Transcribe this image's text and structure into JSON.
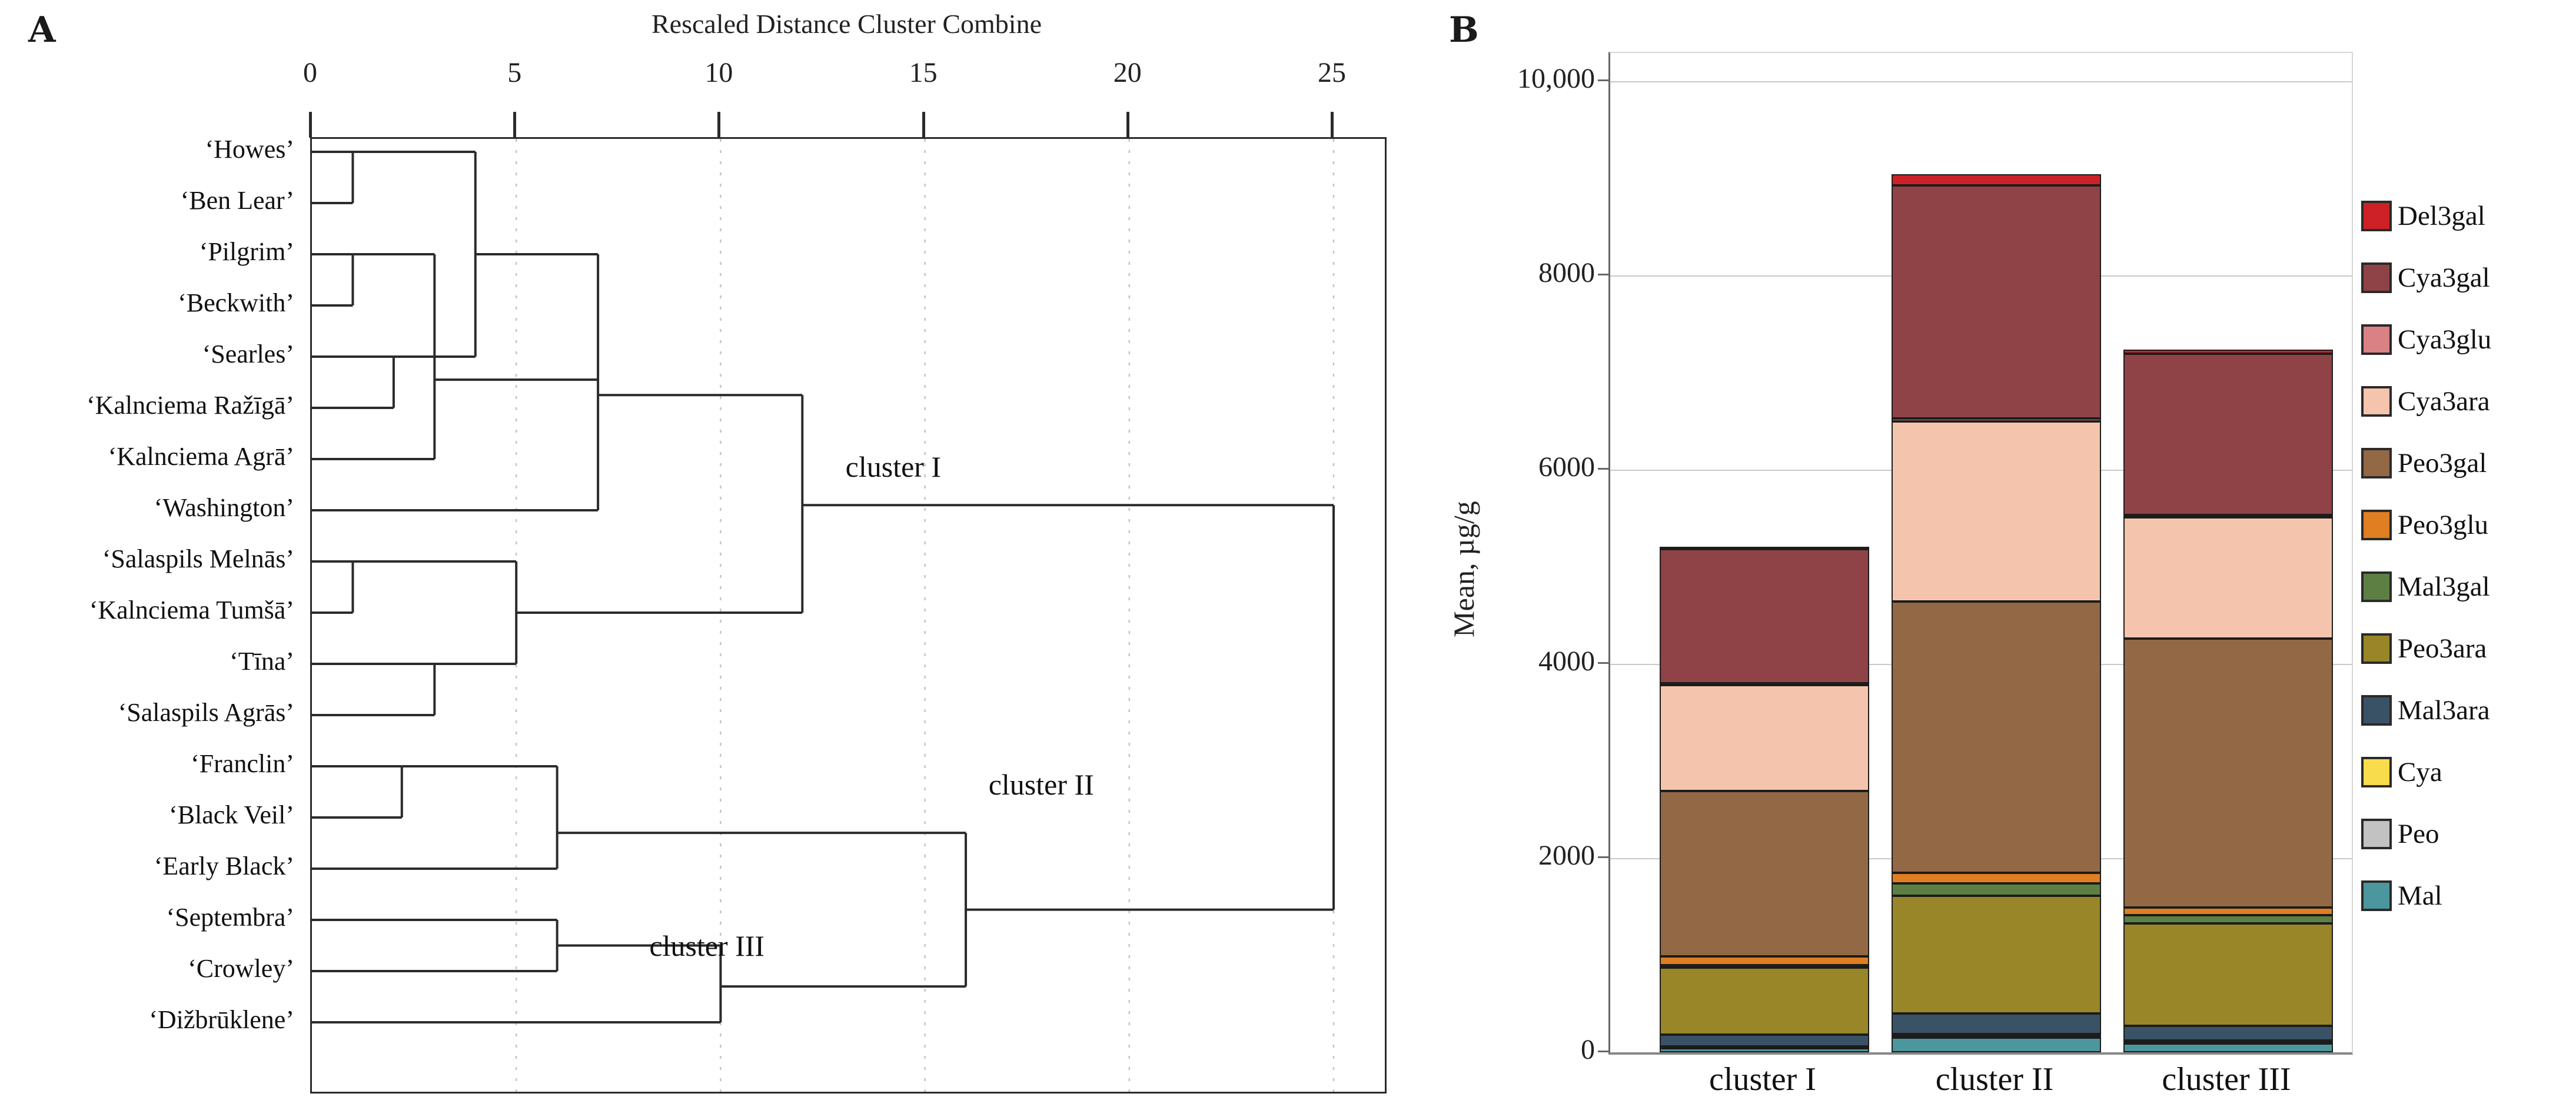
{
  "panel_a": {
    "label": "A",
    "title": "Rescaled Distance Cluster Combine"
  },
  "panel_b": {
    "label": "B",
    "ylabel": "Mean, µg/g"
  },
  "chart_data": [
    {
      "type": "dendrogram",
      "panel": "A",
      "title": "Rescaled Distance Cluster Combine",
      "orientation": "horizontal, leaves on left",
      "axis_ticks": [
        0,
        5,
        10,
        15,
        20,
        25
      ],
      "xlim": [
        0,
        26.2
      ],
      "grid": "dashed vertical gridlines at ticks",
      "leaves": [
        "‘Howes’",
        "‘Ben Lear’",
        "‘Pilgrim’",
        "‘Beckwith’",
        "‘Searles’",
        "‘Kalnciema Ražīgā’",
        "‘Kalnciema Agrā’",
        "‘Washington’",
        "‘Salaspils Melnās’",
        "‘Kalnciema Tumšā’",
        "‘Tīna’",
        "‘Salaspils Agrās’",
        "‘Franclin’",
        "‘Black Veil’",
        "‘Early Black’",
        "‘Septembra’",
        "‘Crowley’",
        "‘Dižbrūklene’"
      ],
      "merges": [
        {
          "merge": [
            "Howes",
            "Ben Lear"
          ],
          "distance": 1
        },
        {
          "merge": [
            "Pilgrim",
            "Beckwith"
          ],
          "distance": 1
        },
        {
          "merge": [
            "Searles",
            "Kalnciema Ražīgā"
          ],
          "distance": 2
        },
        {
          "merge": [
            "Pilgrim+Beckwith",
            "Kalnciema Agrā"
          ],
          "distance": 3
        },
        {
          "merge": [
            "Howes+Ben Lear",
            "Searles+Kalnciema Ražīgā"
          ],
          "distance": 4
        },
        {
          "merge": [
            "upper seven",
            "Washington"
          ],
          "distance": 7
        },
        {
          "merge": [
            "Salaspils Melnās",
            "Kalnciema Tumšā"
          ],
          "distance": 1
        },
        {
          "merge": [
            "Tīna",
            "Salaspils Agrās"
          ],
          "distance": 3
        },
        {
          "merge": [
            "Salaspils Melnās+Kalnciema Tumšā",
            "Tīna+Salaspils Agrās"
          ],
          "distance": 5
        },
        {
          "merge": [
            "upper eight",
            "Salaspils quad"
          ],
          "distance": 12,
          "forms": "cluster I"
        },
        {
          "merge": [
            "Franclin",
            "Black Veil"
          ],
          "distance": 2.2
        },
        {
          "merge": [
            "Franclin+Black Veil",
            "Early Black"
          ],
          "distance": 6,
          "forms": "cluster II"
        },
        {
          "merge": [
            "Septembra",
            "Crowley"
          ],
          "distance": 6
        },
        {
          "merge": [
            "Septembra+Crowley",
            "Dižbrūklene"
          ],
          "distance": 10,
          "forms": "cluster III"
        },
        {
          "merge": [
            "cluster II",
            "cluster III"
          ],
          "distance": 16
        },
        {
          "merge": [
            "cluster I",
            "cluster II + cluster III"
          ],
          "distance": 25
        }
      ],
      "cluster_labels": [
        {
          "text": "cluster I",
          "d": 13.1,
          "row": 7.2
        },
        {
          "text": "cluster II",
          "d": 16.6,
          "row": 13.4
        },
        {
          "text": "cluster III",
          "d": 8.3,
          "row": 16.55
        }
      ],
      "render": {
        "h_segments": [
          [
            1,
            0,
            1
          ],
          [
            2,
            0,
            1
          ],
          [
            1,
            1,
            4
          ],
          [
            3,
            0,
            1
          ],
          [
            4,
            0,
            1
          ],
          [
            3,
            1,
            3
          ],
          [
            5,
            0,
            2
          ],
          [
            6,
            0,
            2
          ],
          [
            5,
            2,
            4
          ],
          [
            7,
            0,
            3
          ],
          [
            5.45,
            3,
            7
          ],
          [
            3,
            4,
            7
          ],
          [
            8,
            0,
            7
          ],
          [
            5.75,
            7,
            12
          ],
          [
            9,
            0,
            1
          ],
          [
            10,
            0,
            1
          ],
          [
            9,
            1,
            5
          ],
          [
            11,
            0,
            3
          ],
          [
            12,
            0,
            3
          ],
          [
            11,
            3,
            5
          ],
          [
            10,
            5,
            12
          ],
          [
            7.9,
            12,
            25
          ],
          [
            13,
            0,
            2.2
          ],
          [
            14,
            0,
            2.2
          ],
          [
            13,
            2.2,
            6
          ],
          [
            15,
            0,
            6
          ],
          [
            14.3,
            6,
            16
          ],
          [
            16,
            0,
            6
          ],
          [
            17,
            0,
            6
          ],
          [
            16.5,
            6,
            10
          ],
          [
            18,
            0,
            10
          ],
          [
            17.3,
            10,
            16
          ],
          [
            15.8,
            16,
            25
          ]
        ],
        "v_segments": [
          [
            1,
            1,
            2
          ],
          [
            1,
            3,
            4
          ],
          [
            2,
            5,
            6
          ],
          [
            3,
            3,
            7
          ],
          [
            4,
            1,
            5
          ],
          [
            7,
            3,
            8
          ],
          [
            1,
            9,
            10
          ],
          [
            3,
            11,
            12
          ],
          [
            5,
            9,
            11
          ],
          [
            12,
            5.75,
            10
          ],
          [
            2.2,
            13,
            14
          ],
          [
            6,
            13,
            15
          ],
          [
            6,
            16,
            17
          ],
          [
            10,
            16.5,
            18
          ],
          [
            16,
            14.3,
            17.3
          ],
          [
            25,
            7.9,
            15.8
          ]
        ]
      }
    },
    {
      "type": "bar",
      "panel": "B",
      "stacked": true,
      "title": "",
      "xlabel": "",
      "ylabel": "Mean, µg/g",
      "ylim": [
        0,
        10000
      ],
      "yticks": [
        0,
        2000,
        4000,
        6000,
        8000,
        10000
      ],
      "ytick_labels": [
        "0",
        "2000",
        "4000",
        "6000",
        "8000",
        "10,000"
      ],
      "grid": true,
      "legend_position": "right",
      "legend_top_to_bottom": [
        "Del3gal",
        "Cya3gal",
        "Cya3glu",
        "Cya3ara",
        "Peo3gal",
        "Peo3glu",
        "Mal3gal",
        "Peo3ara",
        "Mal3ara",
        "Cya",
        "Peo",
        "Mal"
      ],
      "categories": [
        "cluster I",
        "cluster II",
        "cluster III"
      ],
      "series_bottom_to_top": [
        {
          "name": "Mal",
          "color": "#4C979D",
          "values": [
            40,
            150,
            90
          ]
        },
        {
          "name": "Peo",
          "color": "#C2C2C2",
          "values": [
            10,
            20,
            15
          ]
        },
        {
          "name": "Cya",
          "color": "#F9DC4B",
          "values": [
            10,
            20,
            15
          ]
        },
        {
          "name": "Mal3ara",
          "color": "#3A5266",
          "values": [
            120,
            210,
            150
          ]
        },
        {
          "name": "Peo3ara",
          "color": "#988629",
          "values": [
            690,
            1210,
            1060
          ]
        },
        {
          "name": "Mal3gal",
          "color": "#5D7F44",
          "values": [
            30,
            130,
            80
          ]
        },
        {
          "name": "Peo3glu",
          "color": "#E07E22",
          "values": [
            90,
            110,
            80
          ]
        },
        {
          "name": "Peo3gal",
          "color": "#936845",
          "values": [
            1700,
            2790,
            2770
          ]
        },
        {
          "name": "Cya3ara",
          "color": "#F4C5AC",
          "values": [
            1090,
            1860,
            1250
          ]
        },
        {
          "name": "Cya3glu",
          "color": "#DA8186",
          "values": [
            20,
            30,
            25
          ]
        },
        {
          "name": "Cya3gal",
          "color": "#8F4347",
          "values": [
            1380,
            2400,
            1660
          ]
        },
        {
          "name": "Del3gal",
          "color": "#CE2127",
          "values": [
            20,
            110,
            40
          ]
        }
      ],
      "bar_totals_approx": [
        5200,
        9040,
        7235
      ]
    }
  ]
}
